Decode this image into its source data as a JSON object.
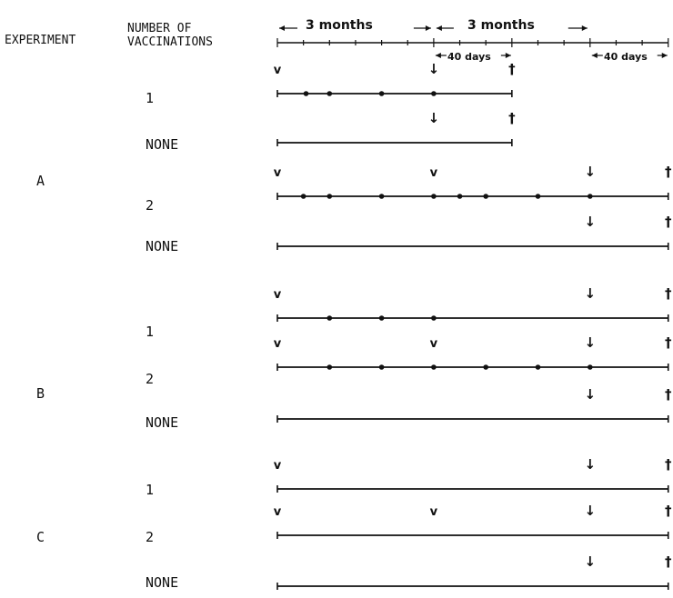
{
  "headers": {
    "experiment": "EXPERIMENT",
    "vaccinations_line1": "NUMBER OF",
    "vaccinations_line2": "VACCINATIONS"
  },
  "timescale": {
    "period1": "3 months",
    "period2": "3 months",
    "interval1": "40 days",
    "interval2": "40 days"
  },
  "markers": {
    "vaccination": "v",
    "challenge": "↓",
    "death": "†"
  },
  "rows": [
    {
      "experiment": "",
      "count": "1",
      "vaccinations_months": [
        0
      ],
      "challenge_months": 3,
      "end_months": 4.5,
      "dots_months": [
        0.55,
        1.0,
        2.0,
        3.0
      ]
    },
    {
      "experiment": "",
      "count": "NONE",
      "vaccinations_months": [],
      "challenge_months": 3,
      "end_months": 4.5,
      "dots_months": []
    },
    {
      "experiment": "A",
      "count": "2",
      "vaccinations_months": [
        0,
        3
      ],
      "challenge_months": 6,
      "end_months": 7.5,
      "dots_months": [
        0.5,
        1.0,
        2.0,
        3.0,
        3.5,
        4.0,
        5.0,
        6.0
      ]
    },
    {
      "experiment": "",
      "count": "NONE",
      "vaccinations_months": [],
      "challenge_months": 6,
      "end_months": 7.5,
      "dots_months": []
    },
    {
      "experiment": "",
      "count": "1",
      "vaccinations_months": [
        0
      ],
      "challenge_months": 6,
      "end_months": 7.5,
      "dots_months": [
        1.0,
        2.0,
        3.0
      ]
    },
    {
      "experiment": "B",
      "count": "2",
      "vaccinations_months": [
        0,
        3
      ],
      "challenge_months": 6,
      "end_months": 7.5,
      "dots_months": [
        1.0,
        2.0,
        3.0,
        4.0,
        5.0,
        6.0
      ]
    },
    {
      "experiment": "",
      "count": "NONE",
      "vaccinations_months": [],
      "challenge_months": 6,
      "end_months": 7.5,
      "dots_months": []
    },
    {
      "experiment": "",
      "count": "1",
      "vaccinations_months": [
        0
      ],
      "challenge_months": 6,
      "end_months": 7.5,
      "dots_months": []
    },
    {
      "experiment": "C",
      "count": "2",
      "vaccinations_months": [
        0,
        3
      ],
      "challenge_months": 6,
      "end_months": 7.5,
      "dots_months": []
    },
    {
      "experiment": "",
      "count": "NONE",
      "vaccinations_months": [],
      "challenge_months": 6,
      "end_months": 7.5,
      "dots_months": []
    }
  ]
}
